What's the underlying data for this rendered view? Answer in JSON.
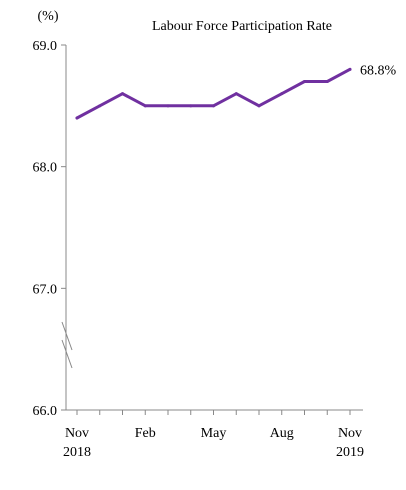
{
  "chart_data": {
    "type": "line",
    "title": "Labour Force Participation Rate",
    "ylabel": "(%)",
    "xlabel": "",
    "ylim": [
      66.0,
      69.0
    ],
    "y_ticks": [
      "69.0",
      "68.0",
      "67.0",
      "66.0"
    ],
    "y_tick_values": [
      69.0,
      68.0,
      67.0,
      66.0
    ],
    "axis_break": true,
    "grid": false,
    "x_tick_labels": [
      {
        "index": 0,
        "line1": "Nov",
        "line2": "2018"
      },
      {
        "index": 3,
        "line1": "Feb",
        "line2": ""
      },
      {
        "index": 6,
        "line1": "May",
        "line2": ""
      },
      {
        "index": 9,
        "line1": "Aug",
        "line2": ""
      },
      {
        "index": 12,
        "line1": "Nov",
        "line2": "2019"
      }
    ],
    "series": [
      {
        "color": "#7030a0",
        "x": [
          "Nov 2018",
          "Dec 2018",
          "Jan 2019",
          "Feb 2019",
          "Mar 2019",
          "Apr 2019",
          "May 2019",
          "Jun 2019",
          "Jul 2019",
          "Aug 2019",
          "Sep 2019",
          "Oct 2019",
          "Nov 2019"
        ],
        "values": [
          68.4,
          68.5,
          68.6,
          68.5,
          68.5,
          68.5,
          68.5,
          68.6,
          68.5,
          68.6,
          68.7,
          68.7,
          68.8
        ]
      }
    ],
    "end_label": "68.8%"
  }
}
